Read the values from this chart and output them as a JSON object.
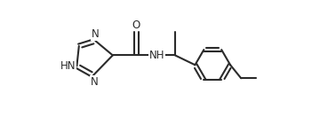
{
  "bg_color": "#ffffff",
  "line_color": "#2b2b2b",
  "line_width": 1.5,
  "font_size": 8.5,
  "font_family": "DejaVu Sans",
  "xlim": [
    0.0,
    10.5
  ],
  "ylim": [
    2.8,
    8.2
  ]
}
